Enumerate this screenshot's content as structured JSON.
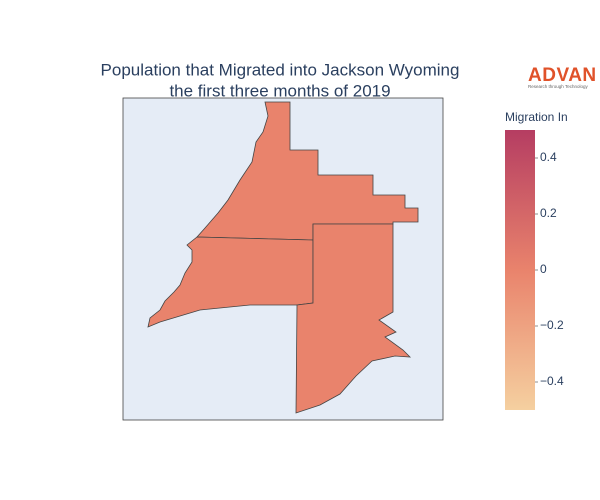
{
  "chart_data": {
    "type": "choropleth",
    "title": [
      "Population that Migrated into Jackson Wyoming",
      "the first three months of 2019"
    ],
    "colorbar_title": "Migration In",
    "zlim": [
      -0.5,
      0.5
    ],
    "zticks": [
      0.4,
      0.2,
      0,
      {
        "value": -0.2,
        "label": "−0.2"
      },
      {
        "value": -0.4,
        "label": "−0.4"
      }
    ],
    "colorscale": [
      "#f5d0a0",
      "#e9836c",
      "#b53d62"
    ],
    "values": [
      0,
      0,
      0
    ]
  },
  "logo": {
    "text": "ADVAN",
    "tagline": "Research through Technology"
  }
}
